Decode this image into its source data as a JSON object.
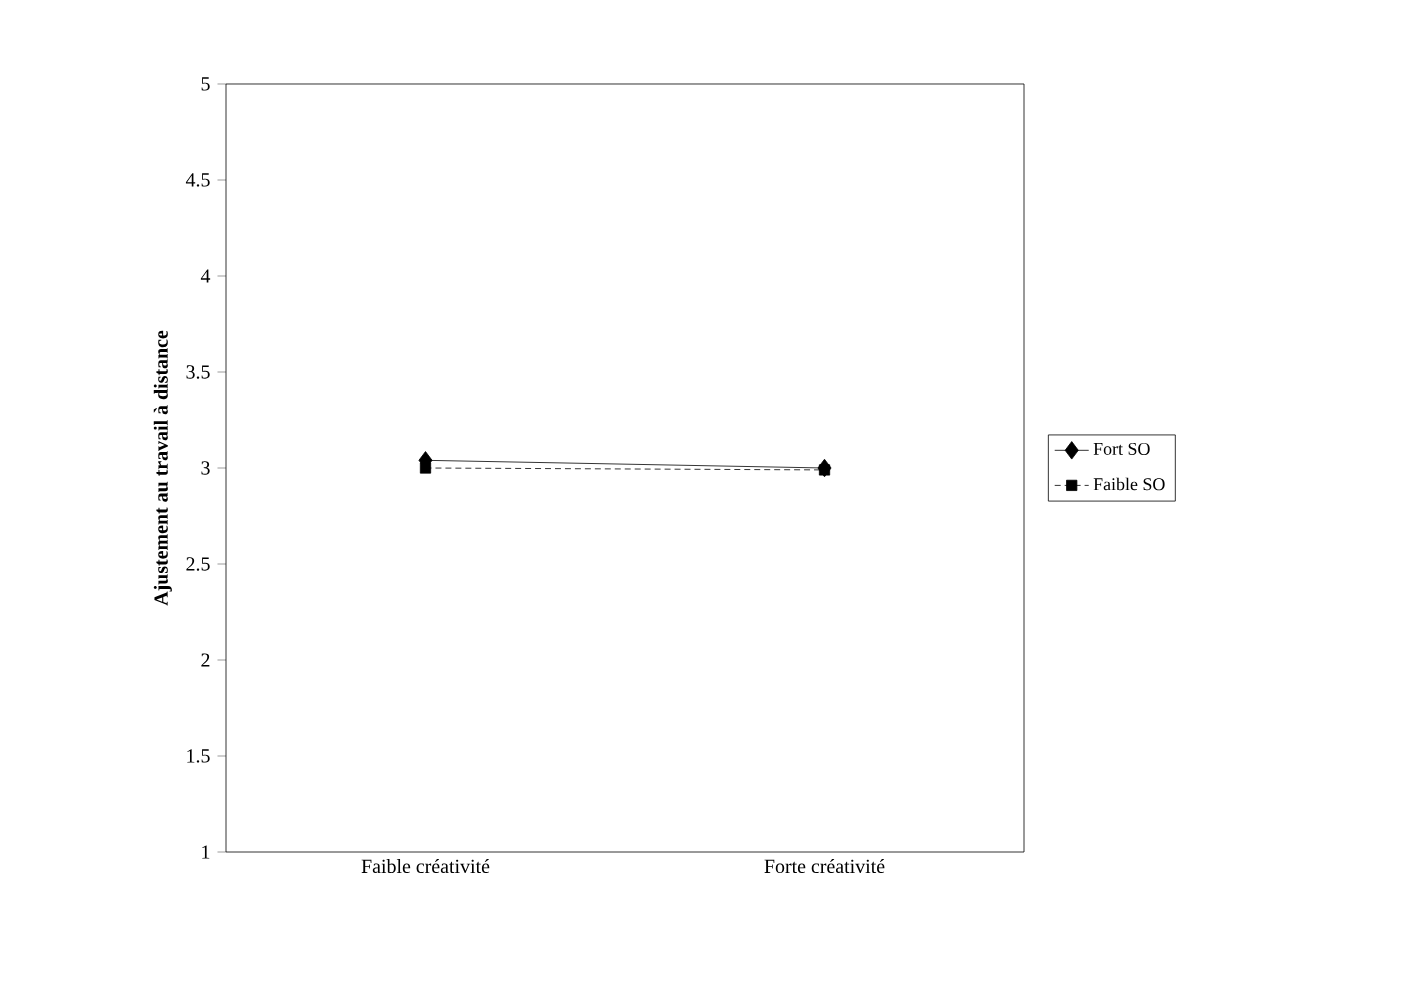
{
  "chart_data": {
    "type": "line",
    "ylabel": "Ajustement  au travail à distance",
    "categories": [
      "Faible créativité",
      "Forte créativité"
    ],
    "series": [
      {
        "name": "Fort SO",
        "color": "#000000",
        "values": [
          3.04,
          3.0
        ],
        "marker": "diamond",
        "line_style": "solid"
      },
      {
        "name": "Faible SO",
        "color": "#000000",
        "values": [
          3.0,
          2.99
        ],
        "marker": "square",
        "line_style": "dashed"
      }
    ],
    "ylim": [
      1,
      5
    ],
    "yticks": [
      1,
      1.5,
      2,
      2.5,
      3,
      3.5,
      4,
      4.5,
      5
    ],
    "grid": false,
    "legend": "right"
  }
}
